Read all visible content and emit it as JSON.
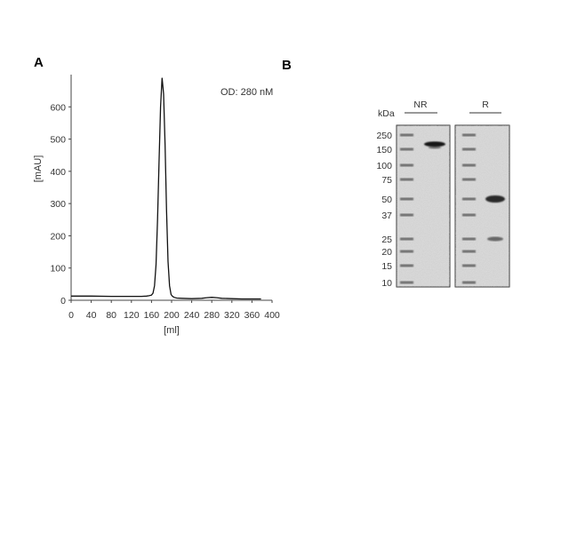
{
  "panels": {
    "a_label": "A",
    "b_label": "B"
  },
  "chart_data": [
    {
      "type": "line",
      "panel": "A",
      "annotation": "OD: 280 nM",
      "xlabel": "[ml]",
      "ylabel": "[mAU]",
      "xlim": [
        0,
        400
      ],
      "ylim": [
        0,
        700
      ],
      "xticks": [
        0,
        40,
        80,
        120,
        160,
        200,
        240,
        280,
        320,
        360,
        400
      ],
      "yticks": [
        0,
        100,
        200,
        300,
        400,
        500,
        600
      ],
      "grid": false,
      "series": [
        {
          "x": [
            0,
            40,
            80,
            120,
            140,
            150,
            155,
            160,
            163,
            166,
            169,
            172,
            175,
            178,
            181,
            184,
            187,
            190,
            193,
            196,
            199,
            202,
            205,
            210,
            220,
            240,
            260,
            270,
            280,
            290,
            300,
            320,
            340,
            360,
            378
          ],
          "y": [
            13,
            13,
            12,
            12,
            12,
            13,
            14,
            16,
            22,
            45,
            110,
            250,
            430,
            600,
            690,
            640,
            480,
            280,
            120,
            45,
            18,
            12,
            9,
            7,
            6,
            5,
            6,
            8,
            9,
            8,
            6,
            5,
            4,
            4,
            4
          ]
        }
      ]
    },
    {
      "type": "gel",
      "panel": "B",
      "unit_label": "kDa",
      "ladder": [
        "250",
        "150",
        "100",
        "75",
        "50",
        "37",
        "25",
        "20",
        "15",
        "10"
      ],
      "lanes": [
        {
          "label": "NR",
          "bands_kda": [
            180,
            160
          ]
        },
        {
          "label": "R",
          "bands_kda": [
            50,
            25
          ]
        }
      ]
    }
  ]
}
